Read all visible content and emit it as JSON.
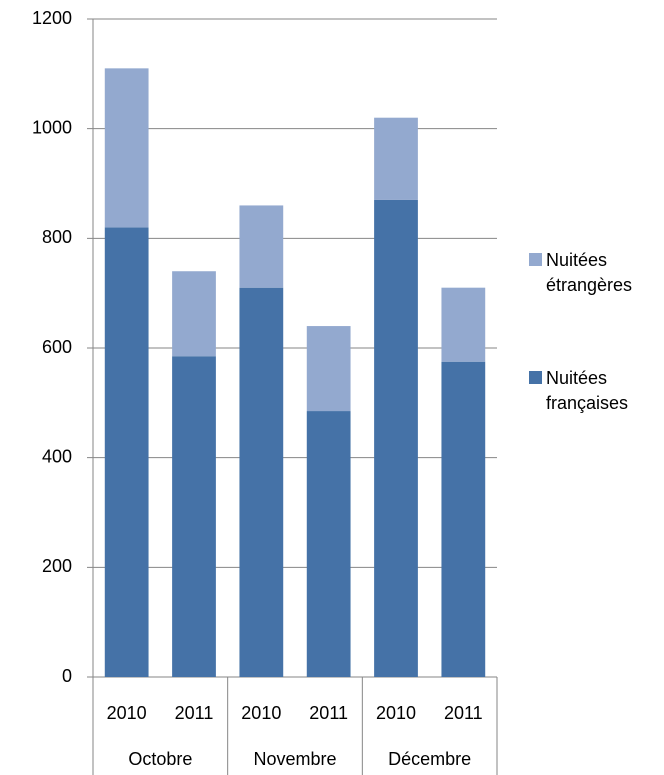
{
  "chart_data": {
    "type": "stacked_bar",
    "categories": [
      "2010",
      "2011",
      "2010",
      "2011",
      "2010",
      "2011"
    ],
    "groups": [
      "Octobre",
      "Novembre",
      "Décembre"
    ],
    "series": [
      {
        "name": "Nuitées françaises",
        "color": "#4572a7",
        "values": [
          820,
          585,
          710,
          485,
          870,
          575
        ]
      },
      {
        "name": "Nuitées étrangères",
        "color": "#93a9cf",
        "values": [
          290,
          155,
          150,
          155,
          150,
          135
        ]
      }
    ],
    "ylim": [
      0,
      1200
    ],
    "yticks": [
      0,
      200,
      400,
      600,
      800,
      1000,
      1200
    ],
    "grid": true,
    "legend": "right"
  }
}
